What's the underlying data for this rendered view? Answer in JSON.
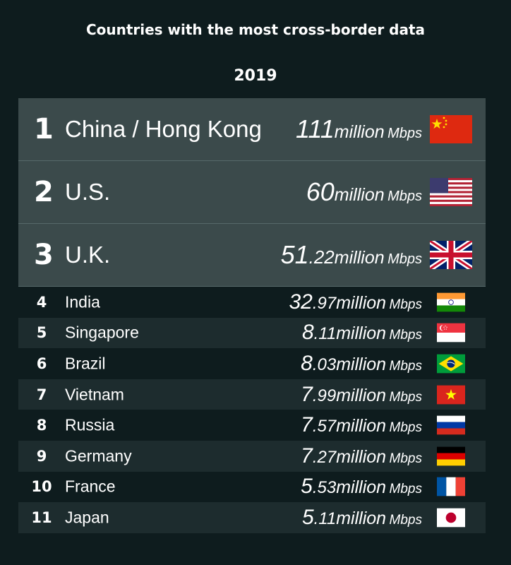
{
  "chart_data": {
    "type": "table",
    "title": "Countries with the most cross-border data",
    "subtitle": "2019",
    "columns": [
      "rank",
      "country",
      "value",
      "unit"
    ],
    "rows": [
      {
        "rank": "1",
        "country": "China / Hong Kong",
        "int": "111",
        "dec": "",
        "value": 111,
        "unit": "million",
        "unit2": "Mbps",
        "flag": "china-flag-icon"
      },
      {
        "rank": "2",
        "country": "U.S.",
        "int": "60",
        "dec": "",
        "value": 60,
        "unit": "million",
        "unit2": "Mbps",
        "flag": "us-flag-icon"
      },
      {
        "rank": "3",
        "country": "U.K.",
        "int": "51",
        "dec": ".22",
        "value": 51.22,
        "unit": "million",
        "unit2": "Mbps",
        "flag": "uk-flag-icon"
      },
      {
        "rank": "4",
        "country": "India",
        "int": "32",
        "dec": ".97",
        "value": 32.97,
        "unit": "million",
        "unit2": "Mbps",
        "flag": "india-flag-icon"
      },
      {
        "rank": "5",
        "country": "Singapore",
        "int": "8",
        "dec": ".11",
        "value": 8.11,
        "unit": "million",
        "unit2": "Mbps",
        "flag": "singapore-flag-icon"
      },
      {
        "rank": "6",
        "country": "Brazil",
        "int": "8",
        "dec": ".03",
        "value": 8.03,
        "unit": "million",
        "unit2": "Mbps",
        "flag": "brazil-flag-icon"
      },
      {
        "rank": "7",
        "country": "Vietnam",
        "int": "7",
        "dec": ".99",
        "value": 7.99,
        "unit": "million",
        "unit2": "Mbps",
        "flag": "vietnam-flag-icon"
      },
      {
        "rank": "8",
        "country": "Russia",
        "int": "7",
        "dec": ".57",
        "value": 7.57,
        "unit": "million",
        "unit2": "Mbps",
        "flag": "russia-flag-icon"
      },
      {
        "rank": "9",
        "country": "Germany",
        "int": "7",
        "dec": ".27",
        "value": 7.27,
        "unit": "million",
        "unit2": "Mbps",
        "flag": "germany-flag-icon"
      },
      {
        "rank": "10",
        "country": "France",
        "int": "5",
        "dec": ".53",
        "value": 5.53,
        "unit": "million",
        "unit2": "Mbps",
        "flag": "france-flag-icon"
      },
      {
        "rank": "11",
        "country": "Japan",
        "int": "5",
        "dec": ".11",
        "value": 5.11,
        "unit": "million",
        "unit2": "Mbps",
        "flag": "japan-flag-icon"
      }
    ]
  },
  "colors": {
    "background": "#0e1c1e",
    "top_row": "#3b4a4b",
    "alt_row": "#1d2c2e",
    "text": "#ffffff"
  }
}
